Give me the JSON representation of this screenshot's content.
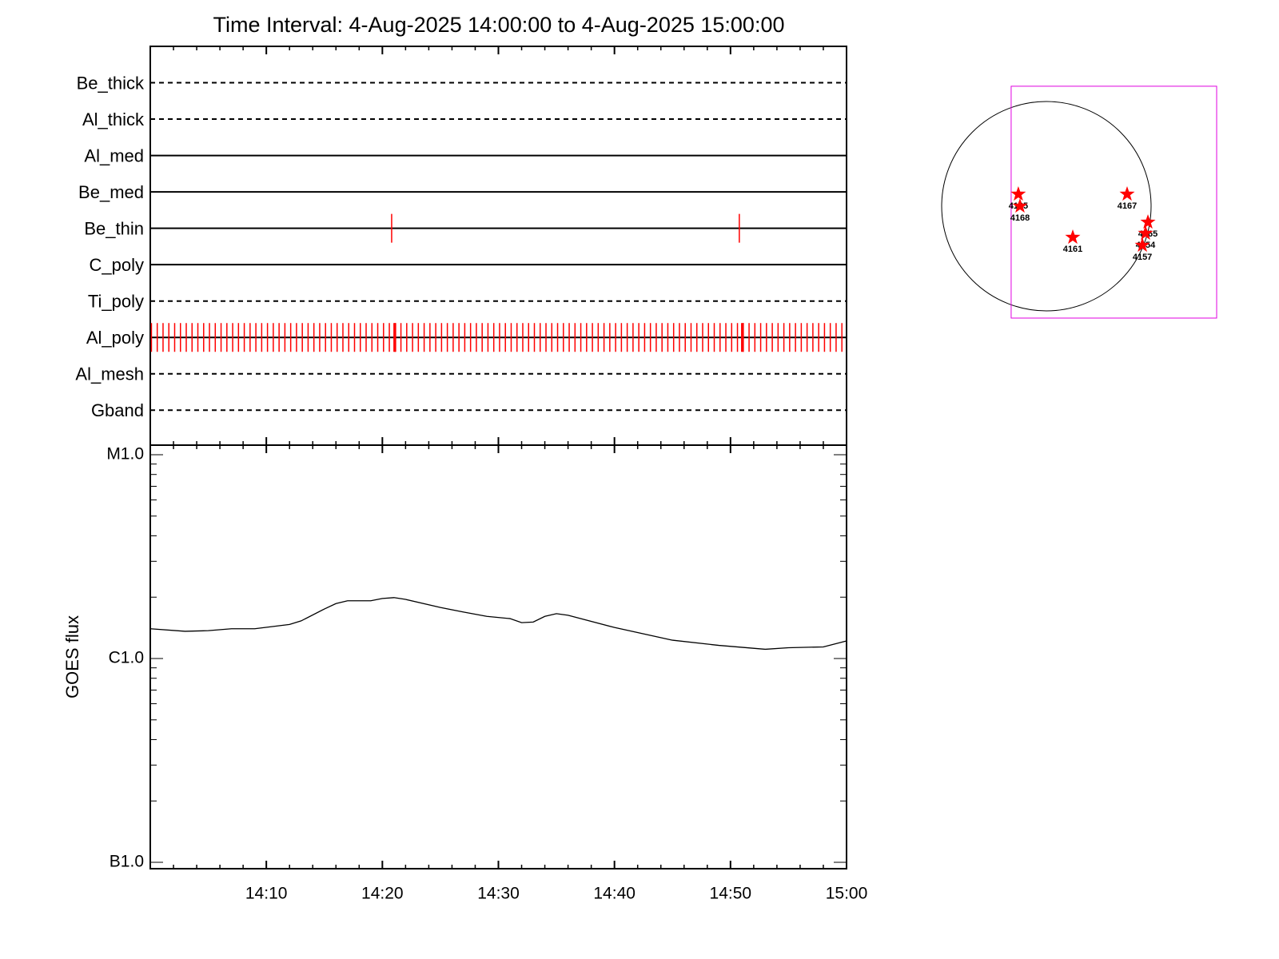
{
  "chart_data": [
    {
      "type": "timeline",
      "title": "Time Interval:  4-Aug-2025 14:00:00 to  4-Aug-2025 15:00:00",
      "xlim": [
        0,
        60
      ],
      "xticks": [
        0,
        10,
        20,
        30,
        40,
        50,
        60
      ],
      "xminorticks": [
        2,
        4,
        6,
        8,
        12,
        14,
        16,
        18,
        22,
        24,
        26,
        28,
        32,
        34,
        36,
        38,
        42,
        44,
        46,
        48,
        52,
        54,
        56,
        58
      ],
      "color": "#ff0000",
      "rows": [
        {
          "name": "Be_thick",
          "style": "dashed"
        },
        {
          "name": "Al_thick",
          "style": "dashed"
        },
        {
          "name": "Al_med",
          "style": "solid"
        },
        {
          "name": "Be_med",
          "style": "solid"
        },
        {
          "name": "Be_thin",
          "style": "solid",
          "events": [
            20.8,
            50.76
          ]
        },
        {
          "name": "C_poly",
          "style": "solid"
        },
        {
          "name": "Ti_poly",
          "style": "dashed"
        },
        {
          "name": "Al_poly",
          "style": "solid",
          "events": [
            0.1,
            0.6,
            1.1,
            1.6,
            2.1,
            2.6,
            3.1,
            3.6,
            4.1,
            4.6,
            5.1,
            5.6,
            6.1,
            6.6,
            7.1,
            7.6,
            8.1,
            8.6,
            9.1,
            9.6,
            10.1,
            10.6,
            11.1,
            11.6,
            12.1,
            12.6,
            13.1,
            13.6,
            14.1,
            14.6,
            15.1,
            15.6,
            16.1,
            16.6,
            17.1,
            17.6,
            18.1,
            18.6,
            19.1,
            19.6,
            20.1,
            20.6,
            21.1,
            21.6,
            22.1,
            22.6,
            23.1,
            23.6,
            24.1,
            24.6,
            25.1,
            25.6,
            26.1,
            26.6,
            27.1,
            27.6,
            28.1,
            28.6,
            29.1,
            29.6,
            30.1,
            30.6,
            31.1,
            31.6,
            32.1,
            32.6,
            33.1,
            33.6,
            34.1,
            34.6,
            35.1,
            35.6,
            36.1,
            36.6,
            37.1,
            37.6,
            38.1,
            38.6,
            39.1,
            39.6,
            40.1,
            40.6,
            41.1,
            41.6,
            42.1,
            42.6,
            43.1,
            43.6,
            44.1,
            44.6,
            45.1,
            45.6,
            46.1,
            46.6,
            47.1,
            47.6,
            48.1,
            48.6,
            49.1,
            49.6,
            50.1,
            50.6,
            51.1,
            51.6,
            52.1,
            52.6,
            53.1,
            53.6,
            54.1,
            54.6,
            55.1,
            55.6,
            56.1,
            56.6,
            57.1,
            57.6,
            58.1,
            58.6,
            59.1,
            59.6
          ],
          "long_events": [
            21.07,
            51.03
          ]
        },
        {
          "name": "Al_mesh",
          "style": "dashed"
        },
        {
          "name": "Gband",
          "style": "dashed"
        }
      ]
    },
    {
      "type": "line",
      "ylabel": "GOES flux",
      "log_scale": true,
      "color": "#000000",
      "xlim": [
        0,
        60
      ],
      "xticks": [
        {
          "value": 10,
          "label": "14:10"
        },
        {
          "value": 20,
          "label": "14:20"
        },
        {
          "value": 30,
          "label": "14:30"
        },
        {
          "value": 40,
          "label": "14:40"
        },
        {
          "value": 50,
          "label": "14:50"
        },
        {
          "value": 60,
          "label": "15:00"
        }
      ],
      "xminorticks": [
        2,
        4,
        6,
        8,
        12,
        14,
        16,
        18,
        22,
        24,
        26,
        28,
        32,
        34,
        36,
        38,
        42,
        44,
        46,
        48,
        52,
        54,
        56,
        58
      ],
      "ylim": [
        1e-07,
        1e-05
      ],
      "yticks": [
        {
          "value": 1e-07,
          "label": "B1.0"
        },
        {
          "value": 1e-06,
          "label": "C1.0"
        },
        {
          "value": 1e-05,
          "label": "M1.0"
        }
      ],
      "yminorticks": [
        2e-07,
        3e-07,
        4e-07,
        5e-07,
        6e-07,
        7e-07,
        8e-07,
        9e-07,
        2e-06,
        3e-06,
        4e-06,
        5e-06,
        6e-06,
        7e-06,
        8e-06,
        9e-06
      ],
      "x": [
        0,
        3,
        5,
        7,
        9,
        12,
        13,
        15,
        16,
        17,
        19,
        20,
        21,
        22,
        25,
        27,
        29,
        31,
        32,
        33,
        34,
        35,
        36,
        40,
        45,
        49,
        53,
        55,
        58,
        60
      ],
      "values": [
        1.4e-06,
        1.36e-06,
        1.37e-06,
        1.4e-06,
        1.4e-06,
        1.47e-06,
        1.53e-06,
        1.75e-06,
        1.86e-06,
        1.92e-06,
        1.92e-06,
        1.97e-06,
        1.99e-06,
        1.95e-06,
        1.78e-06,
        1.69e-06,
        1.61e-06,
        1.57e-06,
        1.5e-06,
        1.51e-06,
        1.61e-06,
        1.66e-06,
        1.63e-06,
        1.42e-06,
        1.23e-06,
        1.16e-06,
        1.11e-06,
        1.13e-06,
        1.14e-06,
        1.22e-06
      ]
    },
    {
      "type": "disk",
      "radius": 960,
      "box_x": [
        -323,
        1561
      ],
      "box_y": [
        -1026,
        1100
      ],
      "box_color": "#e000e0",
      "color": "#ff0000",
      "labels": [
        "4165",
        "4168",
        "4167",
        "4161",
        "4165",
        "4154",
        "4157"
      ],
      "x": [
        -257,
        -242,
        740,
        242,
        931,
        909,
        880
      ],
      "y": [
        110,
        0,
        110,
        -286,
        -147,
        -249,
        -359
      ]
    }
  ]
}
